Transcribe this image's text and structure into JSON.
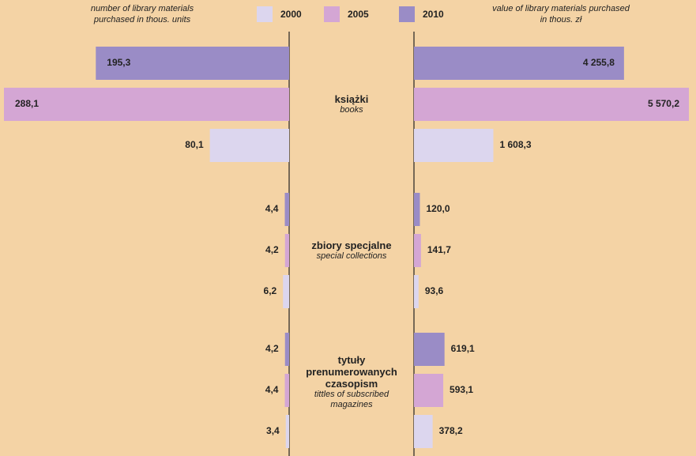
{
  "chart_data": [
    {
      "type": "bar",
      "orientation": "horizontal",
      "direction": "left",
      "subtitle": "number of library materials purchased in thous. units",
      "categories": [
        "książki",
        "zbiory specjalne",
        "tytuły prenumerowanych czasopism"
      ],
      "category_subtitles": [
        "books",
        "special collections",
        "tittles of subscribed magazines"
      ],
      "series": [
        {
          "name": "2000",
          "color": "#dcd6ee",
          "values": [
            80.1,
            6.2,
            3.4
          ],
          "value_labels": [
            "80,1",
            "6,2",
            "3,4"
          ]
        },
        {
          "name": "2005",
          "color": "#d4a6d4",
          "values": [
            288.1,
            4.2,
            4.4
          ],
          "value_labels": [
            "288,1",
            "4,2",
            "4,4"
          ]
        },
        {
          "name": "2010",
          "color": "#9a8cc6",
          "values": [
            195.3,
            4.4,
            4.2
          ],
          "value_labels": [
            "195,3",
            "4,4",
            "4,2"
          ]
        }
      ]
    },
    {
      "type": "bar",
      "orientation": "horizontal",
      "direction": "right",
      "subtitle": "value of library materials purchased in thous. zł",
      "series": [
        {
          "name": "2000",
          "color": "#dcd6ee",
          "values": [
            1608.3,
            93.6,
            378.2
          ],
          "value_labels": [
            "1 608,3",
            "93,6",
            "378,2"
          ]
        },
        {
          "name": "2005",
          "color": "#d4a6d4",
          "values": [
            5570.2,
            141.7,
            593.1
          ],
          "value_labels": [
            "5 570,2",
            "141,7",
            "593,1"
          ]
        },
        {
          "name": "2010",
          "color": "#9a8cc6",
          "values": [
            4255.8,
            120.0,
            619.1
          ],
          "value_labels": [
            "4 255,8",
            "120,0",
            "619,1"
          ]
        }
      ]
    }
  ]
}
